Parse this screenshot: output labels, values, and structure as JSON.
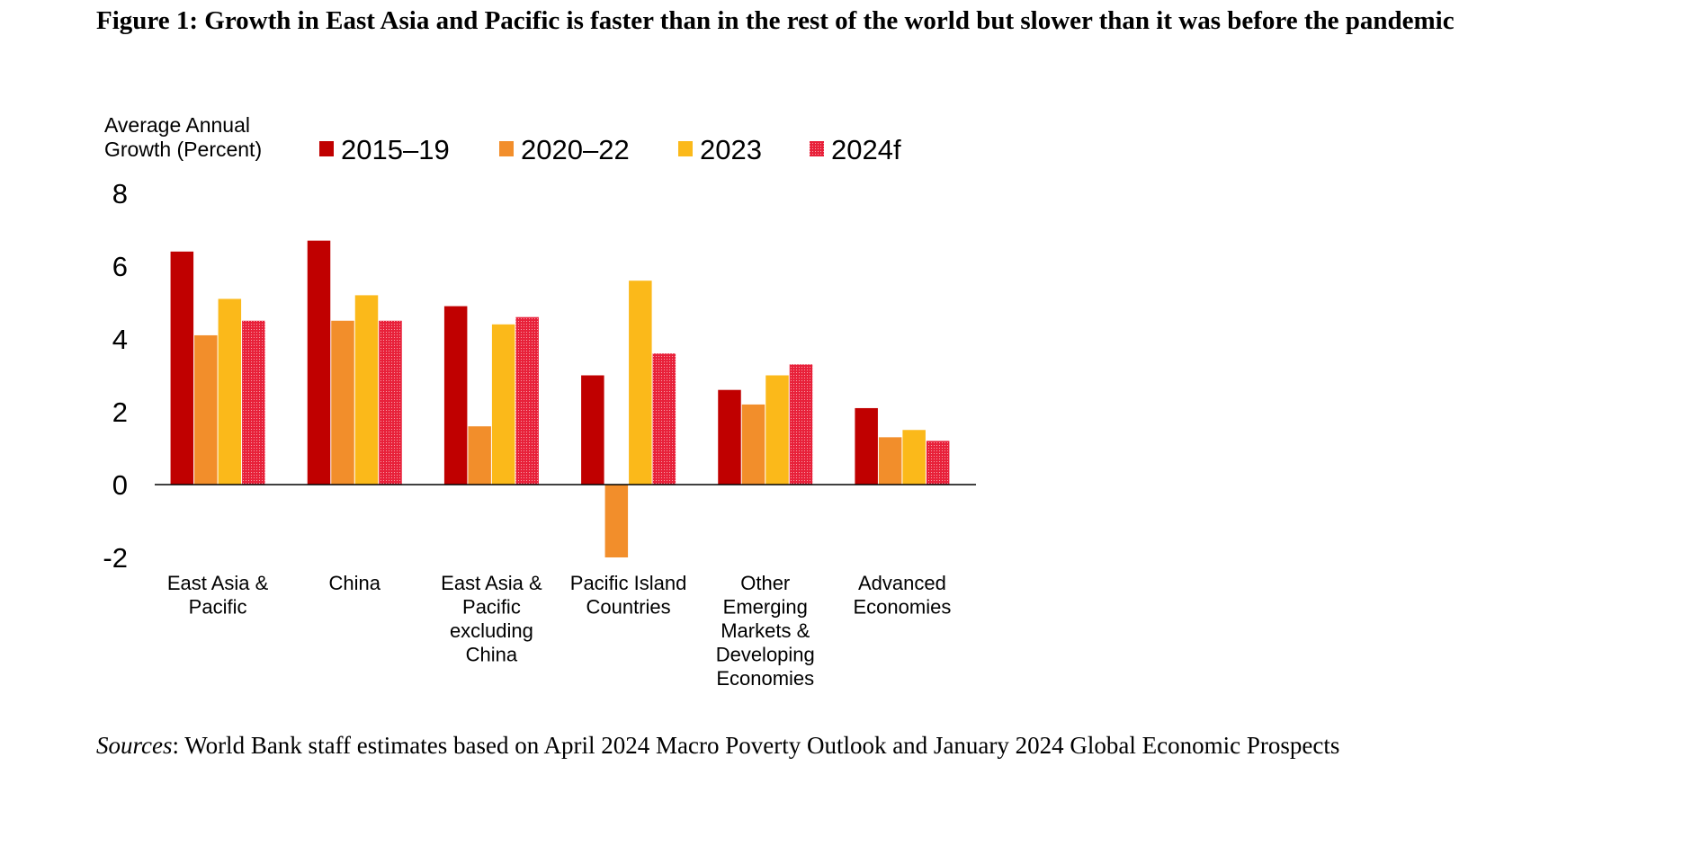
{
  "chart_data": {
    "type": "bar",
    "title": "Figure 1: Growth in East Asia and Pacific is faster than in the rest of the world but slower than it was before the pandemic",
    "ylabel": [
      "Average Annual",
      "Growth (Percent)"
    ],
    "ylim": [
      -2,
      8
    ],
    "yticks": [
      8,
      6,
      4,
      2,
      0,
      -2
    ],
    "grid": false,
    "legend_placement": "top",
    "categories": [
      [
        "East Asia &",
        "Pacific"
      ],
      [
        "China"
      ],
      [
        "East Asia &",
        "Pacific",
        "excluding",
        "China"
      ],
      [
        "Pacific Island",
        "Countries"
      ],
      [
        "Other",
        "Emerging",
        "Markets &",
        "Developing",
        "Economies"
      ],
      [
        "Advanced",
        "Economies"
      ]
    ],
    "series": [
      {
        "name": "2015–19",
        "color": "#C00000",
        "pattern": false,
        "values": [
          6.4,
          6.7,
          4.9,
          3.0,
          2.6,
          2.1
        ]
      },
      {
        "name": "2020–22",
        "color": "#F28E2B",
        "pattern": false,
        "values": [
          4.1,
          4.5,
          1.6,
          -2.0,
          2.2,
          1.3
        ]
      },
      {
        "name": "2023",
        "color": "#FBB91A",
        "pattern": false,
        "values": [
          5.1,
          5.2,
          4.4,
          5.6,
          3.0,
          1.5
        ]
      },
      {
        "name": "2024f",
        "color": "#E8213A",
        "pattern": true,
        "values": [
          4.5,
          4.5,
          4.6,
          3.6,
          3.3,
          1.2
        ]
      }
    ]
  },
  "sources": {
    "label": "Sources",
    "text": ": World Bank staff estimates based on April 2024 Macro Poverty Outlook and January 2024 Global Economic Prospects"
  }
}
